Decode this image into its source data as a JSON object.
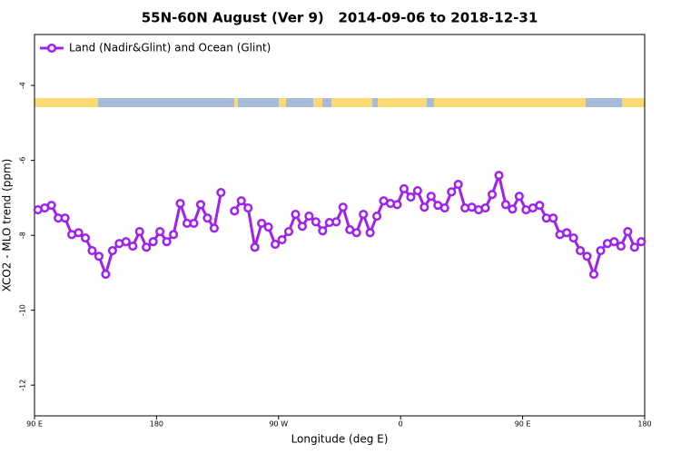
{
  "chart_data": {
    "type": "line",
    "title": "55N-60N August (Ver 9)   2014-09-06 to 2018-12-31",
    "xlabel": "Longitude (deg E)",
    "ylabel": "XCO2 - MLO trend (ppm)",
    "legend": "top-left",
    "xlim": [
      90,
      540
    ],
    "ylim": [
      -12.82,
      -2.64
    ],
    "xticks": [
      {
        "value": 90,
        "label": "90 E"
      },
      180,
      {
        "value": 270,
        "label": "90 W"
      },
      {
        "value": 360,
        "label": "0"
      },
      {
        "value": 450,
        "label": "90 E"
      },
      {
        "value": 540,
        "label": "180"
      }
    ],
    "yticks": [
      -4,
      -6,
      -8,
      -10,
      -12
    ],
    "x": [
      92.5,
      97.5,
      102.5,
      107.5,
      112.5,
      117.5,
      122.5,
      127.5,
      132.5,
      137.5,
      142.5,
      147.5,
      152.5,
      157.5,
      162.5,
      167.5,
      172.5,
      177.5,
      182.5,
      187.5,
      192.5,
      197.5,
      202.5,
      207.5,
      212.5,
      217.5,
      222.5,
      227.5,
      232.5,
      237.5,
      242.5,
      247.5,
      252.5,
      257.5,
      262.5,
      267.5,
      272.5,
      277.5,
      282.5,
      287.5,
      292.5,
      297.5,
      302.5,
      307.5,
      312.5,
      317.5,
      322.5,
      327.5,
      332.5,
      337.5,
      342.5,
      347.5,
      352.5,
      357.5,
      362.5,
      367.5,
      372.5,
      377.5,
      382.5,
      387.5,
      392.5,
      397.5,
      402.5,
      407.5,
      412.5,
      417.5,
      422.5,
      427.5,
      432.5,
      437.5,
      442.5,
      447.5,
      452.5,
      457.5,
      462.5,
      467.5,
      472.5,
      477.5,
      482.5,
      487.5,
      492.5,
      497.5,
      502.5,
      507.5,
      512.5,
      517.5,
      522.5,
      527.5,
      532.5,
      537.5
    ],
    "series": [
      {
        "name": "Land (Nadir&Glint) and Ocean (Glint)",
        "color": "#a020f0",
        "values": [
          -7.32,
          -7.27,
          -7.2,
          -7.54,
          -7.54,
          -7.98,
          -7.93,
          -8.07,
          -8.41,
          -8.56,
          -9.04,
          -8.41,
          -8.22,
          -8.17,
          -8.29,
          -7.9,
          -8.32,
          -8.17,
          -7.9,
          -8.17,
          -7.98,
          -7.15,
          -7.68,
          -7.68,
          -7.18,
          -7.54,
          -7.81,
          -6.86,
          null,
          -7.35,
          -7.08,
          -7.27,
          -8.32,
          -7.68,
          -7.78,
          -8.24,
          -8.12,
          -7.9,
          -7.44,
          -7.76,
          -7.49,
          -7.64,
          -7.88,
          -7.66,
          -7.64,
          -7.25,
          -7.85,
          -7.93,
          -7.44,
          -7.93,
          -7.49,
          -7.08,
          -7.15,
          -7.18,
          -6.76,
          -6.98,
          -6.81,
          -7.25,
          -6.96,
          -7.2,
          -7.27,
          -6.84,
          -6.64,
          -7.27,
          -7.25,
          -7.32,
          -7.27,
          -6.91,
          -6.4,
          -7.18,
          -7.3,
          -6.96,
          -7.32,
          -7.27,
          -7.2,
          -7.54,
          -7.54,
          -7.98,
          -7.93,
          -8.07,
          -8.41,
          -8.56,
          -9.04,
          -8.41,
          -8.22,
          -8.17,
          -8.29,
          -7.9,
          -8.32,
          -8.17
        ]
      }
    ]
  }
}
